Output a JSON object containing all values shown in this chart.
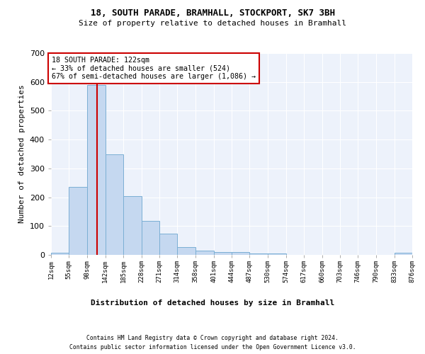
{
  "title_line1": "18, SOUTH PARADE, BRAMHALL, STOCKPORT, SK7 3BH",
  "title_line2": "Size of property relative to detached houses in Bramhall",
  "xlabel": "Distribution of detached houses by size in Bramhall",
  "ylabel": "Number of detached properties",
  "bin_edges": [
    12,
    55,
    98,
    142,
    185,
    228,
    271,
    314,
    358,
    401,
    444,
    487,
    530,
    574,
    617,
    660,
    703,
    746,
    790,
    833,
    876
  ],
  "bin_labels": [
    "12sqm",
    "55sqm",
    "98sqm",
    "142sqm",
    "185sqm",
    "228sqm",
    "271sqm",
    "314sqm",
    "358sqm",
    "401sqm",
    "444sqm",
    "487sqm",
    "530sqm",
    "574sqm",
    "617sqm",
    "660sqm",
    "703sqm",
    "746sqm",
    "790sqm",
    "833sqm",
    "876sqm"
  ],
  "counts": [
    8,
    235,
    590,
    350,
    205,
    117,
    74,
    26,
    15,
    10,
    9,
    5,
    5,
    0,
    0,
    0,
    0,
    0,
    0,
    8
  ],
  "bar_color": "#c5d8f0",
  "bar_edge_color": "#7bafd4",
  "property_line_x": 122,
  "property_line_color": "#cc0000",
  "annotation_text": "18 SOUTH PARADE: 122sqm\n← 33% of detached houses are smaller (524)\n67% of semi-detached houses are larger (1,086) →",
  "annotation_box_color": "#ffffff",
  "annotation_box_edge": "#cc0000",
  "ylim": [
    0,
    700
  ],
  "yticks": [
    0,
    100,
    200,
    300,
    400,
    500,
    600,
    700
  ],
  "background_color": "#edf2fb",
  "grid_color": "#ffffff",
  "footer_line1": "Contains HM Land Registry data © Crown copyright and database right 2024.",
  "footer_line2": "Contains public sector information licensed under the Open Government Licence v3.0."
}
